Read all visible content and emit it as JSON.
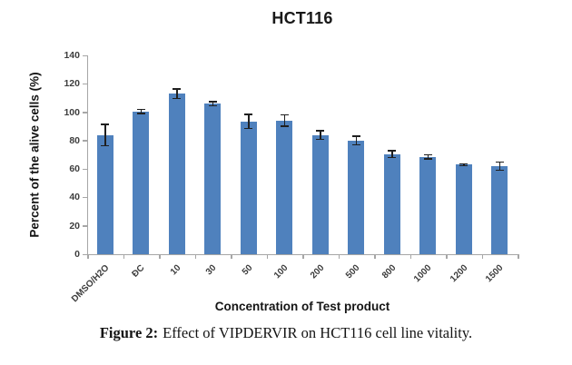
{
  "page": {
    "background": "#ffffff"
  },
  "chart_data": {
    "type": "bar",
    "title": "HCT116",
    "xlabel": "Concentration of Test product",
    "ylabel": "Percent of the alive cells (%)",
    "categories": [
      "DMSO/H2O",
      "ĐC",
      "10",
      "30",
      "50",
      "100",
      "200",
      "500",
      "800",
      "1000",
      "1200",
      "1500"
    ],
    "values": [
      84,
      100.5,
      113,
      106,
      93.5,
      94,
      84,
      80,
      70.5,
      68.5,
      63,
      62
    ],
    "errors": [
      7.5,
      1.5,
      3.5,
      1.5,
      5,
      4,
      3,
      3,
      2.5,
      1.5,
      0.7,
      3
    ],
    "ylim": [
      0,
      140
    ],
    "yticks": [
      0,
      20,
      40,
      60,
      80,
      100,
      120,
      140
    ],
    "grid": false,
    "legend": "none",
    "xtick_rotation_deg": 45,
    "colors": {
      "bar": "#4f81bd",
      "error_bar": "#1f1f1f",
      "axis": "#a6a6a6",
      "tick_labels": "#3d3d3d",
      "titles": "#151515"
    }
  },
  "caption": {
    "label": "Figure 2:",
    "text": "Effect of VIPDERVIR on HCT116 cell line vitality."
  }
}
